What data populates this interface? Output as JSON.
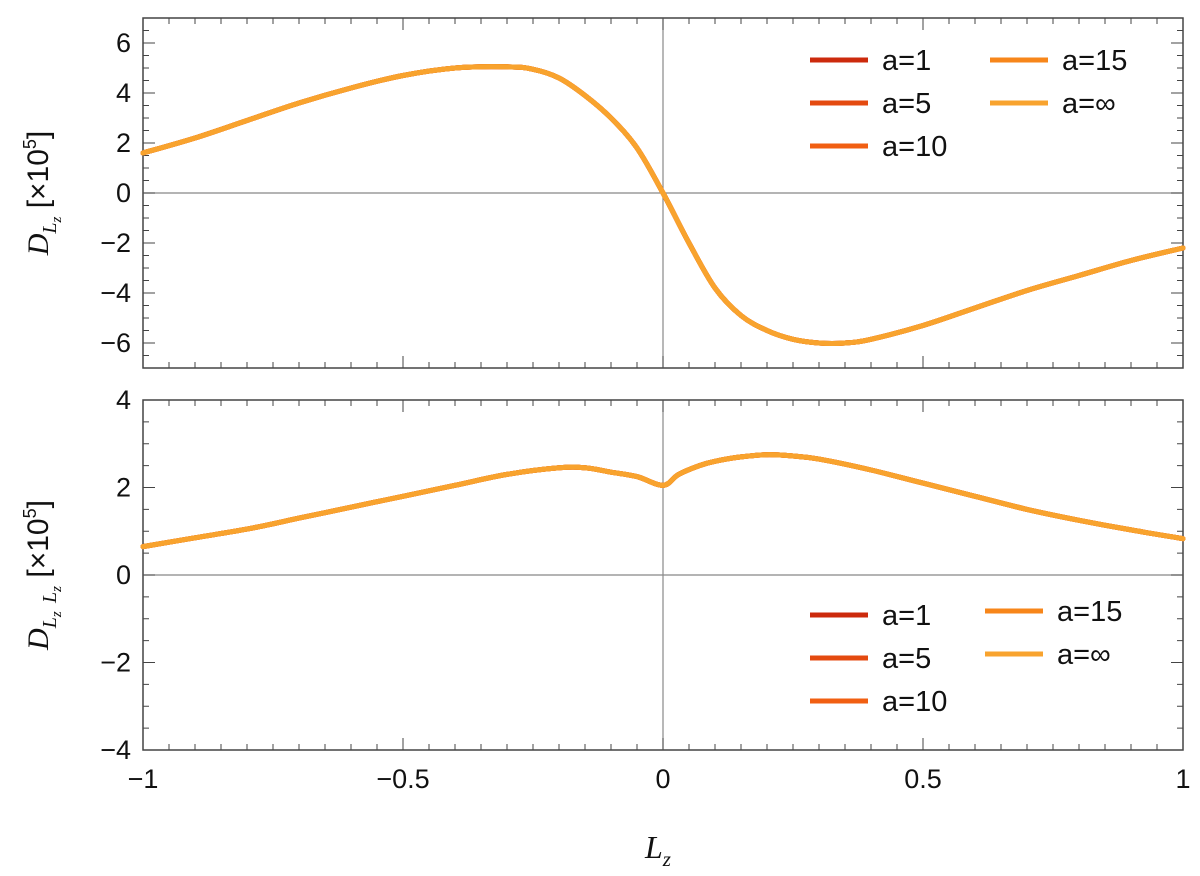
{
  "chart_data": [
    {
      "type": "line",
      "id": "top",
      "ylabel": {
        "sym": "D",
        "sub": "L",
        "subsub": "z",
        "units": "[×10",
        "exp": "5",
        "close": "]"
      },
      "xlim": [
        -1,
        1
      ],
      "ylim": [
        -7,
        7
      ],
      "xticks": [
        -1,
        -0.5,
        0,
        0.5,
        1
      ],
      "yticks": [
        -6,
        -4,
        -2,
        0,
        2,
        4,
        6
      ],
      "ytick_labels": [
        "−6",
        "−4",
        "−2",
        "0",
        "2",
        "4",
        "6"
      ],
      "show_xtick_labels": false,
      "legend_position": "top-right",
      "series": [
        {
          "name": "a=1",
          "color": "#cc2a0c",
          "x": [
            -1,
            -0.9,
            -0.8,
            -0.7,
            -0.6,
            -0.5,
            -0.4,
            -0.3,
            -0.25,
            -0.2,
            -0.15,
            -0.1,
            -0.05,
            0,
            0.05,
            0.1,
            0.15,
            0.2,
            0.25,
            0.3,
            0.35,
            0.4,
            0.5,
            0.6,
            0.7,
            0.8,
            0.9,
            1
          ],
          "y": [
            1.6,
            2.2,
            2.9,
            3.6,
            4.2,
            4.7,
            5.0,
            5.05,
            4.95,
            4.6,
            3.9,
            3.0,
            1.8,
            0.0,
            -2.0,
            -3.8,
            -4.9,
            -5.5,
            -5.85,
            -6.0,
            -6.0,
            -5.85,
            -5.3,
            -4.6,
            -3.9,
            -3.3,
            -2.7,
            -2.2
          ]
        },
        {
          "name": "a=5",
          "color": "#e44a10",
          "x": [
            -1,
            -0.9,
            -0.8,
            -0.7,
            -0.6,
            -0.5,
            -0.4,
            -0.3,
            -0.25,
            -0.2,
            -0.15,
            -0.1,
            -0.05,
            0,
            0.05,
            0.1,
            0.15,
            0.2,
            0.25,
            0.3,
            0.35,
            0.4,
            0.5,
            0.6,
            0.7,
            0.8,
            0.9,
            1
          ],
          "y": [
            1.6,
            2.2,
            2.9,
            3.6,
            4.2,
            4.7,
            5.0,
            5.05,
            4.95,
            4.6,
            3.9,
            3.0,
            1.8,
            0.0,
            -2.0,
            -3.8,
            -4.9,
            -5.5,
            -5.85,
            -6.0,
            -6.0,
            -5.85,
            -5.3,
            -4.6,
            -3.9,
            -3.3,
            -2.7,
            -2.2
          ]
        },
        {
          "name": "a=10",
          "color": "#f15f12",
          "x": [
            -1,
            -0.9,
            -0.8,
            -0.7,
            -0.6,
            -0.5,
            -0.4,
            -0.3,
            -0.25,
            -0.2,
            -0.15,
            -0.1,
            -0.05,
            0,
            0.05,
            0.1,
            0.15,
            0.2,
            0.25,
            0.3,
            0.35,
            0.4,
            0.5,
            0.6,
            0.7,
            0.8,
            0.9,
            1
          ],
          "y": [
            1.6,
            2.2,
            2.9,
            3.6,
            4.2,
            4.7,
            5.0,
            5.05,
            4.95,
            4.6,
            3.9,
            3.0,
            1.8,
            0.0,
            -2.0,
            -3.8,
            -4.9,
            -5.5,
            -5.85,
            -6.0,
            -6.0,
            -5.85,
            -5.3,
            -4.6,
            -3.9,
            -3.3,
            -2.7,
            -2.2
          ]
        },
        {
          "name": "a=15",
          "color": "#f7861a",
          "x": [
            -1,
            -0.9,
            -0.8,
            -0.7,
            -0.6,
            -0.5,
            -0.4,
            -0.3,
            -0.25,
            -0.2,
            -0.15,
            -0.1,
            -0.05,
            0,
            0.05,
            0.1,
            0.15,
            0.2,
            0.25,
            0.3,
            0.35,
            0.4,
            0.5,
            0.6,
            0.7,
            0.8,
            0.9,
            1
          ],
          "y": [
            1.6,
            2.2,
            2.9,
            3.6,
            4.2,
            4.7,
            5.0,
            5.05,
            4.95,
            4.6,
            3.9,
            3.0,
            1.8,
            0.0,
            -2.0,
            -3.8,
            -4.9,
            -5.5,
            -5.85,
            -6.0,
            -6.0,
            -5.85,
            -5.3,
            -4.6,
            -3.9,
            -3.3,
            -2.7,
            -2.2
          ]
        },
        {
          "name": "a=∞",
          "color": "#f8a32e",
          "x": [
            -1,
            -0.9,
            -0.8,
            -0.7,
            -0.6,
            -0.5,
            -0.4,
            -0.3,
            -0.25,
            -0.2,
            -0.15,
            -0.1,
            -0.05,
            0,
            0.05,
            0.1,
            0.15,
            0.2,
            0.25,
            0.3,
            0.35,
            0.4,
            0.5,
            0.6,
            0.7,
            0.8,
            0.9,
            1
          ],
          "y": [
            1.6,
            2.2,
            2.9,
            3.6,
            4.2,
            4.7,
            5.0,
            5.05,
            4.95,
            4.6,
            3.9,
            3.0,
            1.8,
            0.0,
            -2.0,
            -3.8,
            -4.9,
            -5.5,
            -5.85,
            -6.0,
            -6.0,
            -5.85,
            -5.3,
            -4.6,
            -3.9,
            -3.3,
            -2.7,
            -2.2
          ]
        }
      ]
    },
    {
      "type": "line",
      "id": "bottom",
      "ylabel": {
        "sym": "D",
        "sub": "L",
        "subsub": "z",
        "sub2": "L",
        "subsub2": "z",
        "units": "[×10",
        "exp": "5",
        "close": "]"
      },
      "xlabel": {
        "sym": "L",
        "sub": "z"
      },
      "xlim": [
        -1,
        1
      ],
      "ylim": [
        -4,
        4
      ],
      "xticks": [
        -1,
        -0.5,
        0,
        0.5,
        1
      ],
      "xtick_labels": [
        "−1",
        "−0.5",
        "0",
        "0.5",
        "1"
      ],
      "yticks": [
        -4,
        -2,
        0,
        2,
        4
      ],
      "ytick_labels": [
        "−4",
        "−2",
        "0",
        "2",
        "4"
      ],
      "show_xtick_labels": true,
      "legend_position": "lower-right",
      "series": [
        {
          "name": "a=1",
          "color": "#cc2a0c",
          "x": [
            -1,
            -0.9,
            -0.8,
            -0.7,
            -0.6,
            -0.5,
            -0.4,
            -0.3,
            -0.2,
            -0.15,
            -0.1,
            -0.05,
            0,
            0.03,
            0.07,
            0.1,
            0.15,
            0.2,
            0.25,
            0.3,
            0.4,
            0.5,
            0.6,
            0.7,
            0.8,
            0.9,
            1
          ],
          "y": [
            0.65,
            0.85,
            1.05,
            1.3,
            1.55,
            1.8,
            2.05,
            2.3,
            2.45,
            2.45,
            2.35,
            2.25,
            2.05,
            2.3,
            2.5,
            2.6,
            2.7,
            2.75,
            2.72,
            2.65,
            2.4,
            2.1,
            1.8,
            1.5,
            1.25,
            1.03,
            0.83
          ]
        },
        {
          "name": "a=5",
          "color": "#e44a10",
          "x": [
            -1,
            -0.9,
            -0.8,
            -0.7,
            -0.6,
            -0.5,
            -0.4,
            -0.3,
            -0.2,
            -0.15,
            -0.1,
            -0.05,
            0,
            0.03,
            0.07,
            0.1,
            0.15,
            0.2,
            0.25,
            0.3,
            0.4,
            0.5,
            0.6,
            0.7,
            0.8,
            0.9,
            1
          ],
          "y": [
            0.65,
            0.85,
            1.05,
            1.3,
            1.55,
            1.8,
            2.05,
            2.3,
            2.45,
            2.45,
            2.35,
            2.25,
            2.05,
            2.3,
            2.5,
            2.6,
            2.7,
            2.75,
            2.72,
            2.65,
            2.4,
            2.1,
            1.8,
            1.5,
            1.25,
            1.03,
            0.83
          ]
        },
        {
          "name": "a=10",
          "color": "#f15f12",
          "x": [
            -1,
            -0.9,
            -0.8,
            -0.7,
            -0.6,
            -0.5,
            -0.4,
            -0.3,
            -0.2,
            -0.15,
            -0.1,
            -0.05,
            0,
            0.03,
            0.07,
            0.1,
            0.15,
            0.2,
            0.25,
            0.3,
            0.4,
            0.5,
            0.6,
            0.7,
            0.8,
            0.9,
            1
          ],
          "y": [
            0.65,
            0.85,
            1.05,
            1.3,
            1.55,
            1.8,
            2.05,
            2.3,
            2.45,
            2.45,
            2.35,
            2.25,
            2.05,
            2.3,
            2.5,
            2.6,
            2.7,
            2.75,
            2.72,
            2.65,
            2.4,
            2.1,
            1.8,
            1.5,
            1.25,
            1.03,
            0.83
          ]
        },
        {
          "name": "a=15",
          "color": "#f7861a",
          "x": [
            -1,
            -0.9,
            -0.8,
            -0.7,
            -0.6,
            -0.5,
            -0.4,
            -0.3,
            -0.2,
            -0.15,
            -0.1,
            -0.05,
            0,
            0.03,
            0.07,
            0.1,
            0.15,
            0.2,
            0.25,
            0.3,
            0.4,
            0.5,
            0.6,
            0.7,
            0.8,
            0.9,
            1
          ],
          "y": [
            0.65,
            0.85,
            1.05,
            1.3,
            1.55,
            1.8,
            2.05,
            2.3,
            2.45,
            2.45,
            2.35,
            2.25,
            2.05,
            2.3,
            2.5,
            2.6,
            2.7,
            2.75,
            2.72,
            2.65,
            2.4,
            2.1,
            1.8,
            1.5,
            1.25,
            1.03,
            0.83
          ]
        },
        {
          "name": "a=∞",
          "color": "#f8a32e",
          "x": [
            -1,
            -0.9,
            -0.8,
            -0.7,
            -0.6,
            -0.5,
            -0.4,
            -0.3,
            -0.2,
            -0.15,
            -0.1,
            -0.05,
            0,
            0.03,
            0.07,
            0.1,
            0.15,
            0.2,
            0.25,
            0.3,
            0.4,
            0.5,
            0.6,
            0.7,
            0.8,
            0.9,
            1
          ],
          "y": [
            0.65,
            0.85,
            1.05,
            1.3,
            1.55,
            1.8,
            2.05,
            2.3,
            2.45,
            2.45,
            2.35,
            2.25,
            2.05,
            2.3,
            2.5,
            2.6,
            2.7,
            2.75,
            2.72,
            2.65,
            2.4,
            2.1,
            1.8,
            1.5,
            1.25,
            1.03,
            0.83
          ]
        }
      ]
    }
  ]
}
